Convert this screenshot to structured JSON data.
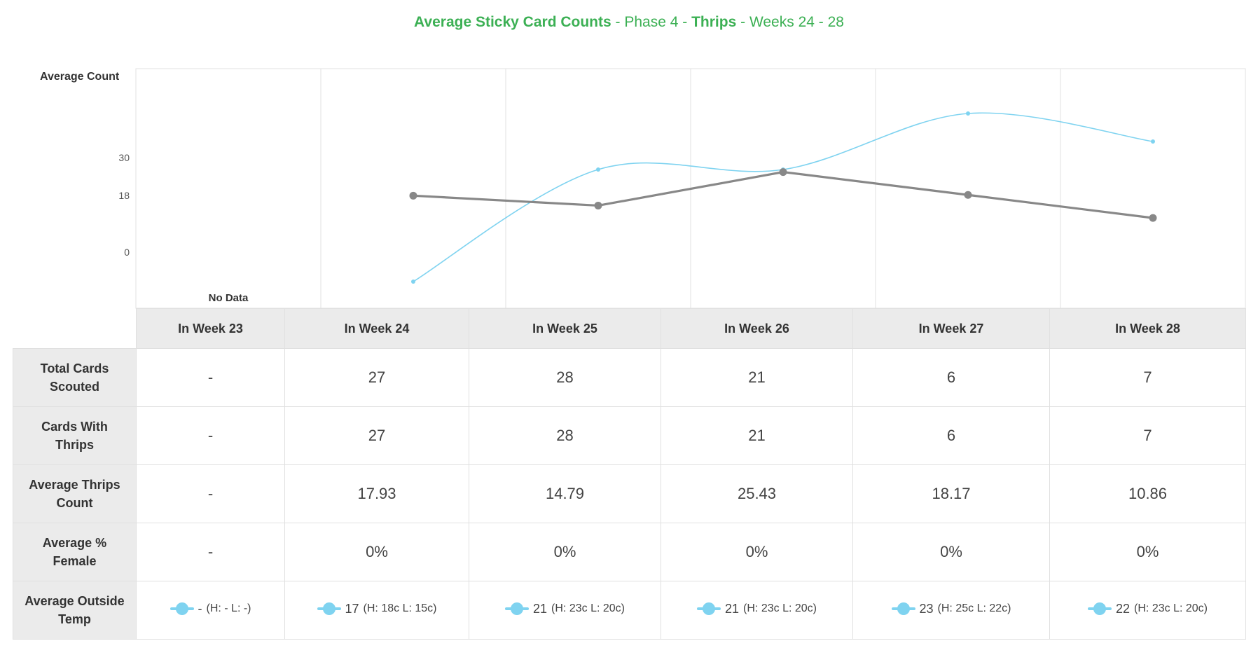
{
  "title": {
    "metric": "Average Sticky Card Counts",
    "sep1": " - ",
    "phase": "Phase 4",
    "sep2": " - ",
    "pest": "Thrips",
    "sep3": " - ",
    "weeks": "Weeks 24 - 28"
  },
  "colors": {
    "title_green": "#3cb054",
    "count_line": "#888888",
    "temp_line": "#7fd3f0",
    "grid": "#e0e0e0",
    "header_bg": "#ebebeb"
  },
  "chart_data": {
    "type": "line",
    "ylabel": "Average Count",
    "yticks": [
      0,
      18,
      30
    ],
    "categories": [
      "In Week 23",
      "In Week 24",
      "In Week 25",
      "In Week 26",
      "In Week 27",
      "In Week 28"
    ],
    "no_data_label": "No Data",
    "series": [
      {
        "name": "Average Thrips Count",
        "values": [
          null,
          17.93,
          14.79,
          25.43,
          18.17,
          10.86
        ],
        "style": "straight"
      },
      {
        "name": "Average Outside Temp",
        "values": [
          null,
          17,
          21,
          21,
          23,
          22
        ],
        "style": "smooth"
      }
    ]
  },
  "table": {
    "columns": [
      "In Week 23",
      "In Week 24",
      "In Week 25",
      "In Week 26",
      "In Week 27",
      "In Week 28"
    ],
    "rows": [
      {
        "label": "Total Cards Scouted",
        "values": [
          "-",
          "27",
          "28",
          "21",
          "6",
          "7"
        ]
      },
      {
        "label": "Cards With Thrips",
        "values": [
          "-",
          "27",
          "28",
          "21",
          "6",
          "7"
        ]
      },
      {
        "label": "Average Thrips Count",
        "values": [
          "-",
          "17.93",
          "14.79",
          "25.43",
          "18.17",
          "10.86"
        ]
      },
      {
        "label": "Average % Female",
        "values": [
          "-",
          "0%",
          "0%",
          "0%",
          "0%",
          "0%"
        ]
      }
    ],
    "temp_row": {
      "label": "Average Outside Temp",
      "icon": "temperature-legend-icon",
      "values": [
        {
          "avg": "-",
          "range": "(H: - L: -)"
        },
        {
          "avg": "17",
          "range": "(H: 18c L: 15c)"
        },
        {
          "avg": "21",
          "range": "(H: 23c L: 20c)"
        },
        {
          "avg": "21",
          "range": "(H: 23c L: 20c)"
        },
        {
          "avg": "23",
          "range": "(H: 25c L: 22c)"
        },
        {
          "avg": "22",
          "range": "(H: 23c L: 20c)"
        }
      ]
    }
  }
}
